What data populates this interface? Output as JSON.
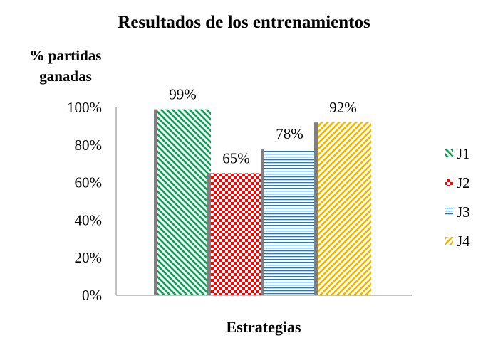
{
  "chart_data": {
    "type": "bar",
    "title": "Resultados de los entrenamientos",
    "ylabel": "% partidas ganadas",
    "xlabel": "Estrategias",
    "ylim": [
      0,
      100
    ],
    "y_ticks": [
      "0%",
      "20%",
      "40%",
      "60%",
      "80%",
      "100%"
    ],
    "grid": false,
    "legend_position": "right",
    "series": [
      {
        "name": "J1",
        "value": 99,
        "label": "99%",
        "color": "#00a651",
        "pattern": "diagonal-down"
      },
      {
        "name": "J2",
        "value": 65,
        "label": "65%",
        "color": "#ff0000",
        "pattern": "checker"
      },
      {
        "name": "J3",
        "value": 78,
        "label": "78%",
        "color": "#2e75b6",
        "pattern": "horizontal"
      },
      {
        "name": "J4",
        "value": 92,
        "label": "92%",
        "color": "#f4b400",
        "pattern": "diagonal-up"
      }
    ]
  }
}
